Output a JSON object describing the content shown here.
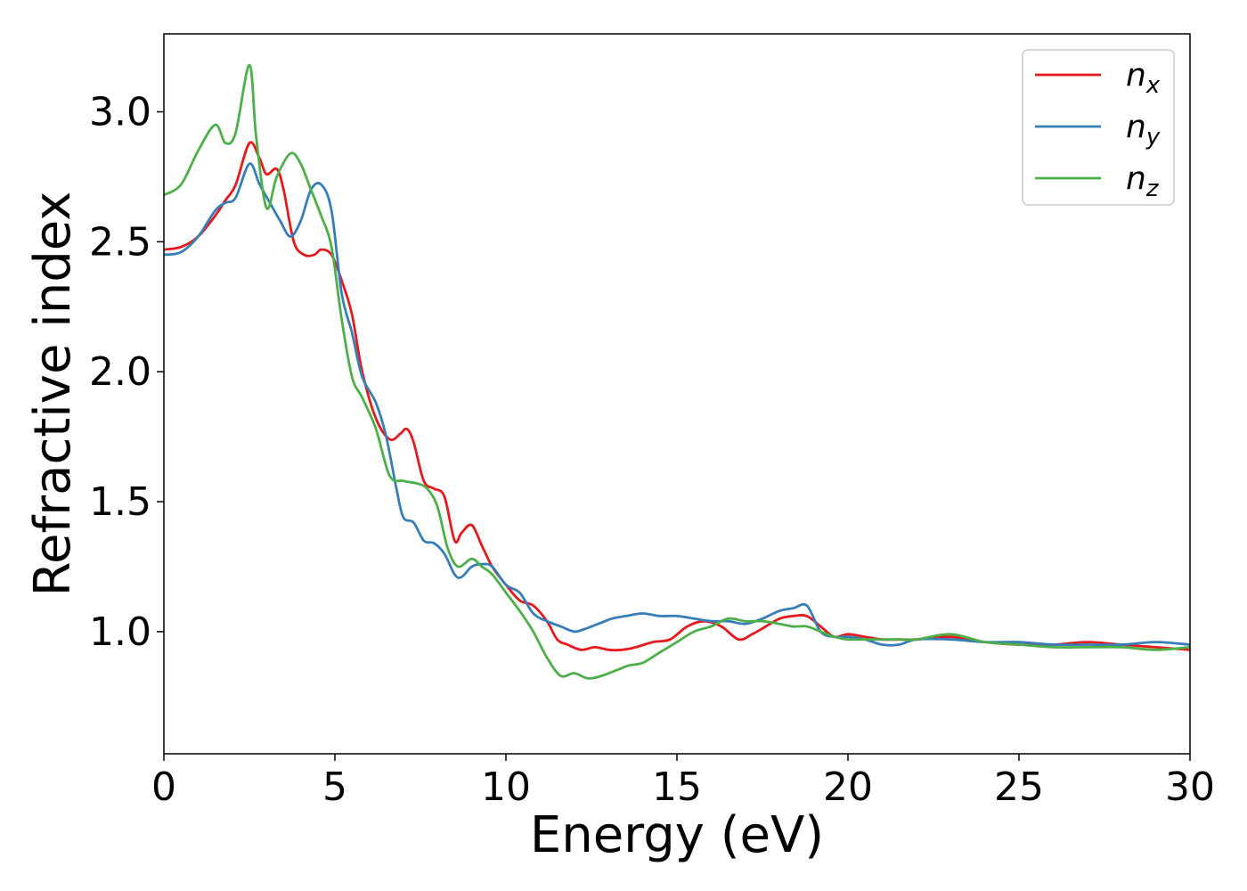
{
  "chart_data": {
    "type": "line",
    "xlabel": "Energy (eV)",
    "ylabel": "Refractive index",
    "xlim": [
      0,
      30
    ],
    "ylim": [
      0.53,
      3.3
    ],
    "xticks": [
      0,
      5,
      10,
      15,
      20,
      25,
      30
    ],
    "xtick_labels": [
      "0",
      "5",
      "10",
      "15",
      "20",
      "25",
      "30"
    ],
    "yticks": [
      1.0,
      1.5,
      2.0,
      2.5,
      3.0
    ],
    "ytick_labels": [
      "1.0",
      "1.5",
      "2.0",
      "2.5",
      "3.0"
    ],
    "grid": false,
    "legend_position": "top-right",
    "series": [
      {
        "key": "nx",
        "name_base": "n",
        "name_sub": "x",
        "color": "#e41a1c",
        "x": [
          0,
          0.5,
          1.0,
          1.5,
          1.8,
          2.1,
          2.5,
          2.8,
          3.0,
          3.3,
          3.5,
          3.8,
          4.1,
          4.4,
          4.6,
          4.9,
          5.2,
          5.5,
          5.8,
          6.2,
          6.6,
          6.9,
          7.1,
          7.3,
          7.6,
          7.9,
          8.2,
          8.5,
          8.7,
          9.0,
          9.3,
          9.6,
          10.0,
          10.4,
          10.8,
          11.2,
          11.5,
          11.8,
          12.2,
          12.6,
          13.0,
          13.4,
          13.8,
          14.3,
          14.8,
          15.3,
          15.8,
          16.3,
          16.8,
          17.2,
          17.6,
          18.0,
          18.4,
          18.8,
          19.2,
          19.6,
          20.0,
          20.5,
          21.0,
          21.5,
          22.0,
          23.0,
          24.0,
          25.0,
          26.0,
          27.0,
          28.0,
          29.0,
          30.0
        ],
        "y": [
          2.47,
          2.48,
          2.52,
          2.6,
          2.66,
          2.72,
          2.88,
          2.82,
          2.76,
          2.78,
          2.7,
          2.5,
          2.45,
          2.45,
          2.47,
          2.45,
          2.35,
          2.22,
          2.0,
          1.82,
          1.74,
          1.76,
          1.78,
          1.73,
          1.58,
          1.55,
          1.52,
          1.35,
          1.38,
          1.41,
          1.33,
          1.25,
          1.18,
          1.12,
          1.1,
          1.04,
          0.97,
          0.95,
          0.93,
          0.94,
          0.93,
          0.93,
          0.94,
          0.96,
          0.97,
          1.02,
          1.04,
          1.02,
          0.97,
          0.99,
          1.02,
          1.05,
          1.06,
          1.06,
          1.02,
          0.98,
          0.99,
          0.98,
          0.97,
          0.97,
          0.97,
          0.98,
          0.96,
          0.95,
          0.95,
          0.96,
          0.95,
          0.94,
          0.93
        ]
      },
      {
        "key": "ny",
        "name_base": "n",
        "name_sub": "y",
        "color": "#377eb8",
        "x": [
          0,
          0.5,
          1.0,
          1.5,
          1.8,
          2.1,
          2.5,
          2.8,
          3.1,
          3.4,
          3.7,
          4.0,
          4.3,
          4.6,
          4.9,
          5.2,
          5.5,
          5.8,
          6.2,
          6.5,
          6.8,
          7.0,
          7.3,
          7.6,
          7.9,
          8.2,
          8.5,
          8.7,
          9.0,
          9.3,
          9.6,
          10.0,
          10.4,
          10.8,
          11.2,
          11.6,
          12.0,
          12.3,
          12.7,
          13.1,
          13.5,
          14.0,
          14.5,
          15.0,
          15.5,
          16.0,
          16.5,
          17.0,
          17.5,
          18.0,
          18.4,
          18.8,
          19.2,
          19.6,
          20.0,
          20.5,
          21.0,
          21.5,
          22.0,
          23.0,
          24.0,
          25.0,
          26.0,
          27.0,
          28.0,
          29.0,
          30.0
        ],
        "y": [
          2.45,
          2.46,
          2.52,
          2.62,
          2.65,
          2.67,
          2.8,
          2.72,
          2.65,
          2.58,
          2.52,
          2.58,
          2.7,
          2.72,
          2.62,
          2.3,
          2.15,
          1.98,
          1.88,
          1.75,
          1.55,
          1.44,
          1.42,
          1.35,
          1.34,
          1.3,
          1.22,
          1.21,
          1.25,
          1.26,
          1.25,
          1.18,
          1.15,
          1.07,
          1.04,
          1.02,
          1.0,
          1.01,
          1.03,
          1.05,
          1.06,
          1.07,
          1.06,
          1.06,
          1.05,
          1.04,
          1.04,
          1.03,
          1.05,
          1.08,
          1.09,
          1.1,
          1.0,
          0.98,
          0.98,
          0.97,
          0.95,
          0.95,
          0.97,
          0.97,
          0.96,
          0.96,
          0.95,
          0.95,
          0.95,
          0.96,
          0.95
        ]
      },
      {
        "key": "nz",
        "name_base": "n",
        "name_sub": "z",
        "color": "#4daf4a",
        "x": [
          0,
          0.5,
          1.0,
          1.5,
          1.8,
          2.1,
          2.5,
          2.7,
          3.0,
          3.3,
          3.7,
          4.0,
          4.3,
          4.6,
          4.9,
          5.2,
          5.5,
          5.8,
          6.2,
          6.6,
          7.0,
          7.4,
          7.7,
          8.0,
          8.3,
          8.6,
          9.0,
          9.3,
          9.6,
          10.0,
          10.4,
          10.8,
          11.2,
          11.6,
          12.0,
          12.4,
          12.8,
          13.2,
          13.6,
          14.0,
          14.5,
          15.0,
          15.5,
          16.0,
          16.5,
          17.0,
          17.5,
          18.0,
          18.4,
          18.8,
          19.2,
          19.6,
          20.0,
          20.5,
          21.0,
          21.5,
          22.0,
          23.0,
          24.0,
          25.0,
          26.0,
          27.0,
          28.0,
          29.0,
          30.0
        ],
        "y": [
          2.68,
          2.72,
          2.85,
          2.95,
          2.88,
          2.92,
          3.18,
          2.9,
          2.63,
          2.75,
          2.84,
          2.8,
          2.7,
          2.6,
          2.48,
          2.2,
          1.98,
          1.9,
          1.78,
          1.6,
          1.58,
          1.57,
          1.55,
          1.48,
          1.32,
          1.25,
          1.28,
          1.25,
          1.22,
          1.15,
          1.08,
          1.0,
          0.9,
          0.83,
          0.84,
          0.82,
          0.83,
          0.85,
          0.87,
          0.88,
          0.92,
          0.96,
          1.0,
          1.02,
          1.05,
          1.04,
          1.04,
          1.03,
          1.02,
          1.02,
          1.0,
          0.98,
          0.97,
          0.97,
          0.97,
          0.97,
          0.97,
          0.99,
          0.96,
          0.95,
          0.94,
          0.94,
          0.94,
          0.93,
          0.94
        ]
      }
    ]
  }
}
